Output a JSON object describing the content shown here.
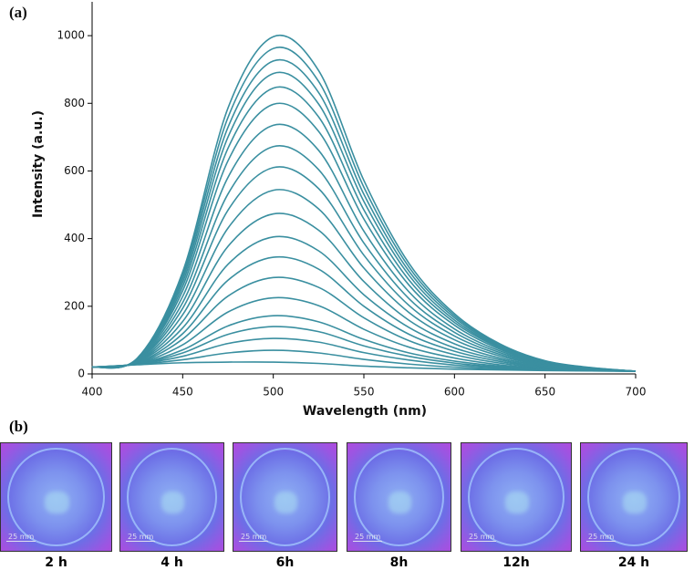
{
  "chart_data": {
    "type": "line",
    "panel_label": "(a)",
    "xlabel": "Wavelength (nm)",
    "ylabel": "Intensity (a.u.)",
    "x": [
      400,
      425,
      450,
      475,
      500,
      525,
      550,
      575,
      600,
      625,
      650,
      675,
      700
    ],
    "xlim": [
      400,
      700
    ],
    "xticks": [
      400,
      450,
      500,
      550,
      600,
      650,
      700
    ],
    "ylim": [
      0,
      1100
    ],
    "yticks": [
      0,
      200,
      400,
      600,
      800,
      1000
    ],
    "color": "#3a8fa0",
    "grid": false,
    "series": [
      {
        "values": [
          20,
          47,
          302,
          786,
          997,
          897,
          572,
          326,
          178,
          89,
          39,
          19,
          8
        ]
      },
      {
        "values": [
          20,
          46,
          292,
          758,
          962,
          865,
          552,
          315,
          172,
          86,
          38,
          18,
          8
        ]
      },
      {
        "values": [
          20,
          45,
          282,
          729,
          925,
          832,
          531,
          303,
          166,
          83,
          37,
          18,
          8
        ]
      },
      {
        "values": [
          20,
          44,
          271,
          700,
          888,
          798,
          510,
          291,
          159,
          80,
          36,
          18,
          8
        ]
      },
      {
        "values": [
          20,
          43,
          259,
          667,
          845,
          760,
          485,
          277,
          152,
          77,
          35,
          17,
          8
        ]
      },
      {
        "values": [
          20,
          43,
          246,
          630,
          797,
          717,
          458,
          262,
          144,
          73,
          33,
          17,
          8
        ]
      },
      {
        "values": [
          20,
          41,
          229,
          581,
          735,
          661,
          422,
          242,
          133,
          68,
          31,
          16,
          8
        ]
      },
      {
        "values": [
          20,
          40,
          211,
          532,
          672,
          604,
          387,
          222,
          123,
          63,
          30,
          16,
          8
        ]
      },
      {
        "values": [
          20,
          39,
          194,
          484,
          610,
          548,
          351,
          202,
          112,
          58,
          28,
          15,
          8
        ]
      },
      {
        "values": [
          20,
          37,
          175,
          431,
          543,
          488,
          313,
          181,
          101,
          53,
          26,
          14,
          8
        ]
      },
      {
        "values": [
          20,
          36,
          155,
          377,
          473,
          425,
          273,
          158,
          89,
          47,
          24,
          14,
          8
        ]
      },
      {
        "values": [
          20,
          35,
          136,
          324,
          405,
          364,
          234,
          137,
          77,
          42,
          21,
          13,
          8
        ]
      },
      {
        "values": [
          20,
          33,
          119,
          277,
          345,
          310,
          200,
          117,
          67,
          37,
          20,
          12,
          8
        ]
      },
      {
        "values": [
          20,
          32,
          103,
          230,
          285,
          256,
          166,
          98,
          57,
          32,
          18,
          12,
          8
        ]
      },
      {
        "values": [
          20,
          31,
          86,
          183,
          225,
          202,
          132,
          79,
          47,
          27,
          16,
          11,
          8
        ]
      },
      {
        "values": [
          20,
          30,
          71,
          142,
          172,
          154,
          102,
          62,
          38,
          23,
          15,
          11,
          8
        ]
      },
      {
        "values": [
          20,
          29,
          62,
          117,
          140,
          125,
          83,
          52,
          32,
          20,
          14,
          10,
          8
        ]
      },
      {
        "values": [
          20,
          29,
          52,
          90,
          105,
          94,
          63,
          41,
          26,
          18,
          12,
          10,
          8
        ]
      },
      {
        "values": [
          20,
          28,
          42,
          62,
          70,
          62,
          43,
          29,
          20,
          15,
          11,
          9,
          8
        ]
      },
      {
        "values": [
          20,
          27,
          33,
          35,
          35,
          31,
          23,
          18,
          14,
          12,
          10,
          9,
          8
        ]
      }
    ]
  },
  "photos_panel": {
    "panel_label": "(b)",
    "photos": [
      {
        "label": "2 h",
        "scale_bar": "25 mm"
      },
      {
        "label": "4 h",
        "scale_bar": "25 mm"
      },
      {
        "label": "6h",
        "scale_bar": "25 mm"
      },
      {
        "label": "8h",
        "scale_bar": "25 mm"
      },
      {
        "label": "12h",
        "scale_bar": "25 mm"
      },
      {
        "label": "24 h",
        "scale_bar": "25 mm"
      }
    ]
  }
}
